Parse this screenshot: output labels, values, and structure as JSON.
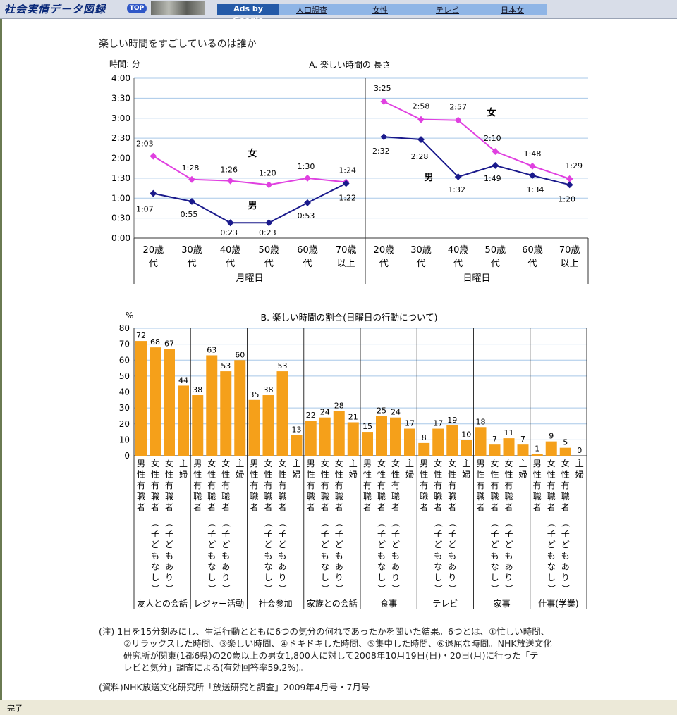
{
  "browser": {
    "site_logo": "社会実情データ図録",
    "top_button": "TOP",
    "ads_label": "Ads by Google",
    "ad_links": [
      "人口調査",
      "女性",
      "テレビ",
      "日本女"
    ],
    "status": "完了"
  },
  "page_title": "楽しい時間をすごしているのは誰か",
  "colors": {
    "women": "#e040e0",
    "men": "#1a1a8c",
    "bar": "#f5a01a",
    "grid": "#a8c8e8"
  },
  "chart_data": [
    {
      "type": "line",
      "title": "A. 楽しい時間の 長さ",
      "ylabel": "時間: 分",
      "y_ticks": [
        "4:00",
        "3:30",
        "3:00",
        "2:30",
        "2:00",
        "1:30",
        "1:00",
        "0:30",
        "0:00"
      ],
      "ylim_minutes": [
        0,
        240
      ],
      "grid": true,
      "categories": [
        "20歳代",
        "30歳代",
        "40歳代",
        "50歳代",
        "60歳代",
        "70歳以上"
      ],
      "category_lines": [
        [
          "20歳",
          "代"
        ],
        [
          "30歳",
          "代"
        ],
        [
          "40歳",
          "代"
        ],
        [
          "50歳",
          "代"
        ],
        [
          "60歳",
          "代"
        ],
        [
          "70歳",
          "以上"
        ]
      ],
      "panels": [
        {
          "day": "月曜日",
          "series": [
            {
              "name": "女",
              "values_minutes": [
                123,
                88,
                86,
                80,
                90,
                84
              ],
              "labels": [
                "2:03",
                "1:28",
                "1:26",
                "1:20",
                "1:30",
                "1:24"
              ]
            },
            {
              "name": "男",
              "values_minutes": [
                67,
                55,
                23,
                23,
                53,
                82
              ],
              "labels": [
                "1:07",
                "0:55",
                "0:23",
                "0:23",
                "0:53",
                "1:22"
              ]
            }
          ]
        },
        {
          "day": "日曜日",
          "series": [
            {
              "name": "女",
              "values_minutes": [
                205,
                178,
                177,
                130,
                108,
                89
              ],
              "labels": [
                "3:25",
                "2:58",
                "2:57",
                "2:10",
                "1:48",
                "1:29"
              ]
            },
            {
              "name": "男",
              "values_minutes": [
                152,
                148,
                92,
                109,
                94,
                80
              ],
              "labels": [
                "2:32",
                "2:28",
                "1:32",
                "1:49",
                "1:34",
                "1:20"
              ]
            }
          ]
        }
      ]
    },
    {
      "type": "bar",
      "title": "B. 楽しい時間の割合(日曜日の行動について)",
      "ylabel": "%",
      "ylim": [
        0,
        80
      ],
      "y_ticks": [
        "80",
        "70",
        "60",
        "50",
        "40",
        "30",
        "20",
        "10",
        "0"
      ],
      "grid": true,
      "respondent_labels": [
        {
          "top": "男性有職者",
          "bottom": ""
        },
        {
          "top": "女性有職者",
          "bottom": "（子どもなし）"
        },
        {
          "top": "女性有職者",
          "bottom": "（子どもあり）"
        },
        {
          "top": "主婦",
          "bottom": ""
        }
      ],
      "groups": [
        {
          "name": "友人との会話",
          "values": [
            72,
            68,
            67,
            44
          ]
        },
        {
          "name": "レジャー活動",
          "values": [
            38,
            63,
            53,
            60
          ]
        },
        {
          "name": "社会参加",
          "values": [
            35,
            38,
            53,
            13
          ]
        },
        {
          "name": "家族との会話",
          "values": [
            22,
            24,
            28,
            21
          ]
        },
        {
          "name": "食事",
          "values": [
            15,
            25,
            24,
            17
          ]
        },
        {
          "name": "テレビ",
          "values": [
            8,
            17,
            19,
            10
          ]
        },
        {
          "name": "家事",
          "values": [
            18,
            7,
            11,
            7
          ]
        },
        {
          "name": "仕事(学業)",
          "values": [
            1,
            9,
            5,
            0
          ]
        }
      ]
    }
  ],
  "notes": {
    "note_lines": [
      "(注) 1日を15分刻みにし、生活行動とともに6つの気分の何れであったかを聞いた結果。6つとは、①忙しい時間、",
      "②リラックスした時間、③楽しい時間、④ドキドキした時間、⑤集中した時間、⑥退屈な時間。NHK放送文化",
      "研究所が関東(1都6県)の20歳以上の男女1,800人に対して2008年10月19日(日)・20日(月)に行った「テ",
      "レビと気分」調査による(有効回答率59.2%)。"
    ],
    "source": "(資料)NHK放送文化研究所「放送研究と調査」2009年4月号・7月号"
  }
}
